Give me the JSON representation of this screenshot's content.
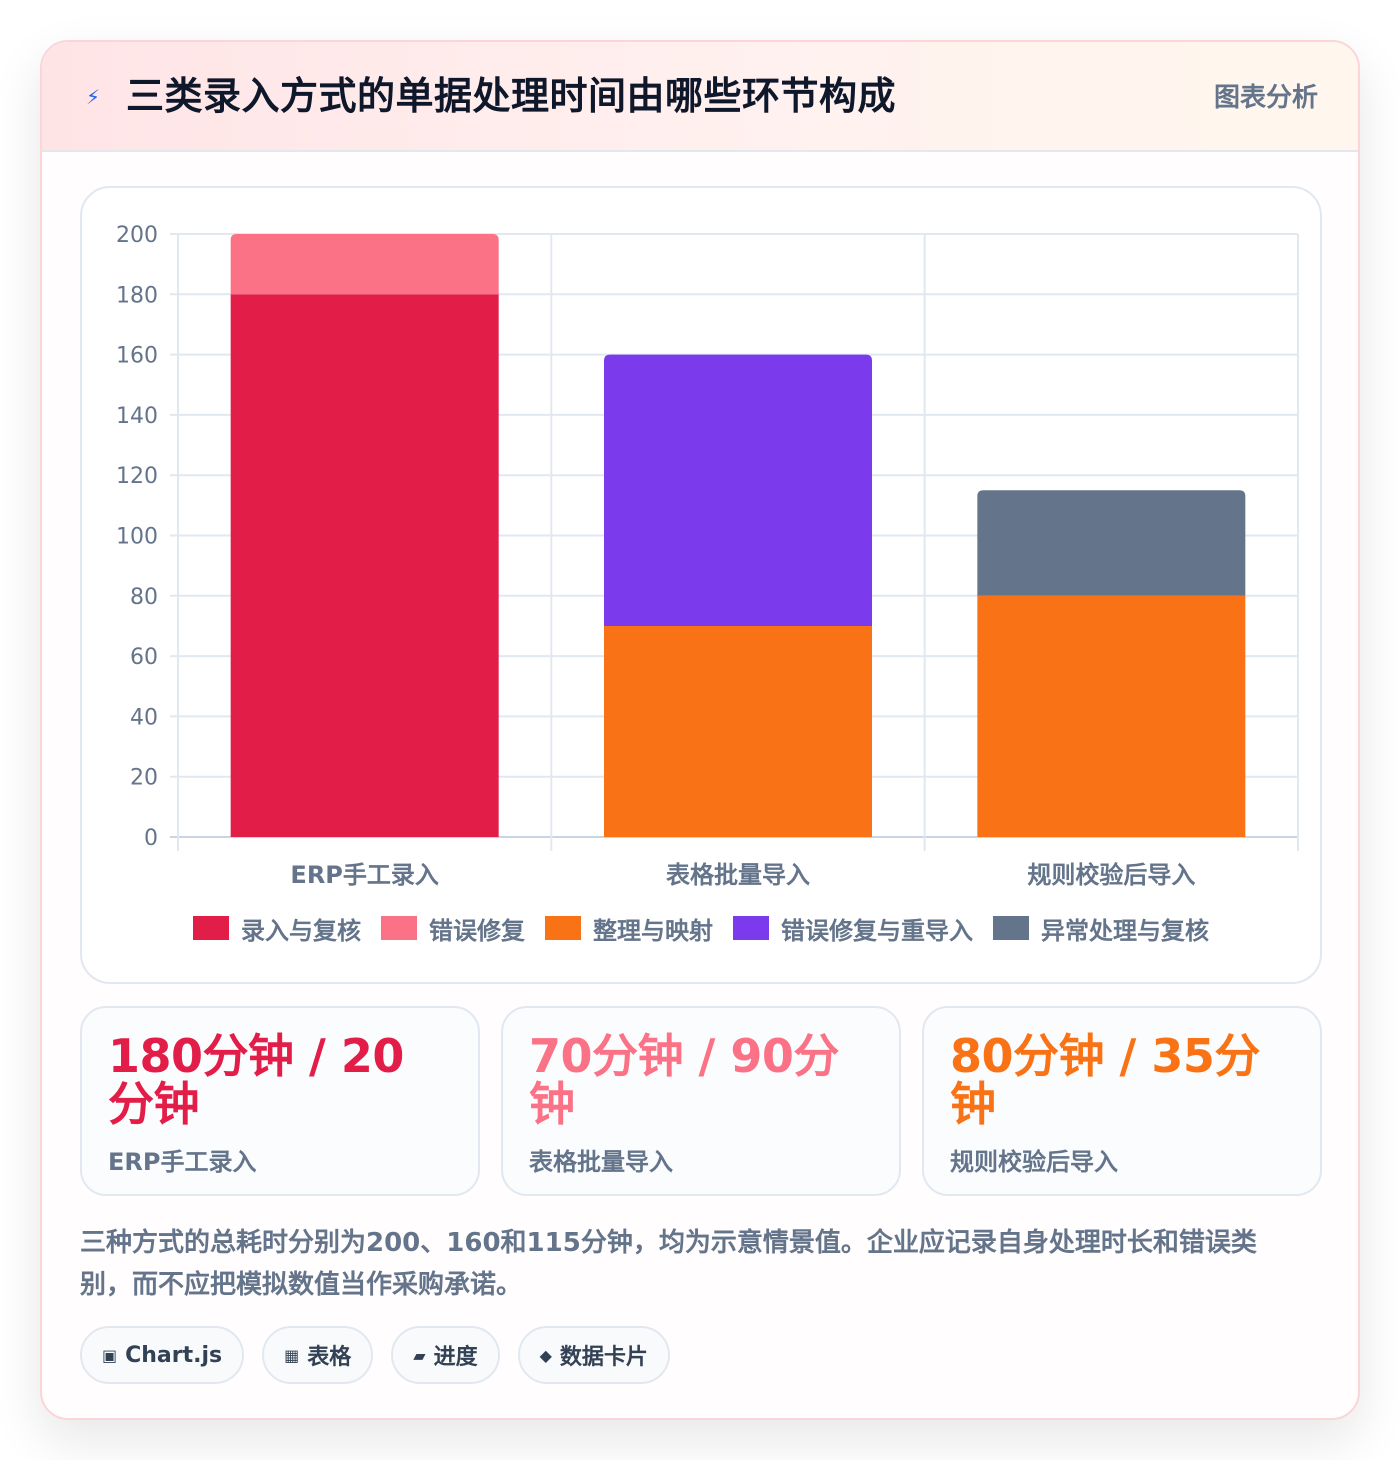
{
  "header": {
    "icon": "lightning-icon",
    "title": "三类录入方式的单据处理时间由哪些环节构成",
    "tag": "图表分析"
  },
  "chart_data": {
    "type": "bar",
    "stacked": true,
    "title": "",
    "xlabel": "",
    "ylabel": "",
    "ylim": [
      0,
      200
    ],
    "yticks": [
      0,
      20,
      40,
      60,
      80,
      100,
      120,
      140,
      160,
      180,
      200
    ],
    "grid": true,
    "legend_position": "bottom",
    "categories": [
      "ERP手工录入",
      "表格批量导入",
      "规则校验后导入"
    ],
    "series": [
      {
        "name": "录入与复核",
        "color": "#e11d48",
        "values": [
          180,
          0,
          0
        ]
      },
      {
        "name": "错误修复",
        "color": "#fb7185",
        "values": [
          20,
          0,
          0
        ]
      },
      {
        "name": "整理与映射",
        "color": "#f97316",
        "values": [
          0,
          70,
          80
        ]
      },
      {
        "name": "错误修复与重导入",
        "color": "#7c3aed",
        "values": [
          0,
          90,
          0
        ]
      },
      {
        "name": "异常处理与复核",
        "color": "#64748b",
        "values": [
          0,
          0,
          35
        ]
      }
    ]
  },
  "stats": [
    {
      "value": "180分钟 / 20分钟",
      "label": "ERP手工录入",
      "color": "#e11d48"
    },
    {
      "value": "70分钟 / 90分钟",
      "label": "表格批量导入",
      "color": "#fb7185"
    },
    {
      "value": "80分钟 / 35分钟",
      "label": "规则校验后导入",
      "color": "#f97316"
    }
  ],
  "note": "三种方式的总耗时分别为200、160和115分钟，均为示意情景值。企业应记录自身处理时长和错误类别，而不应把模拟数值当作采购承诺。",
  "tags": [
    {
      "icon": "▣",
      "label": "Chart.js"
    },
    {
      "icon": "▦",
      "label": "表格"
    },
    {
      "icon": "▰",
      "label": "进度"
    },
    {
      "icon": "◆",
      "label": "数据卡片"
    }
  ]
}
